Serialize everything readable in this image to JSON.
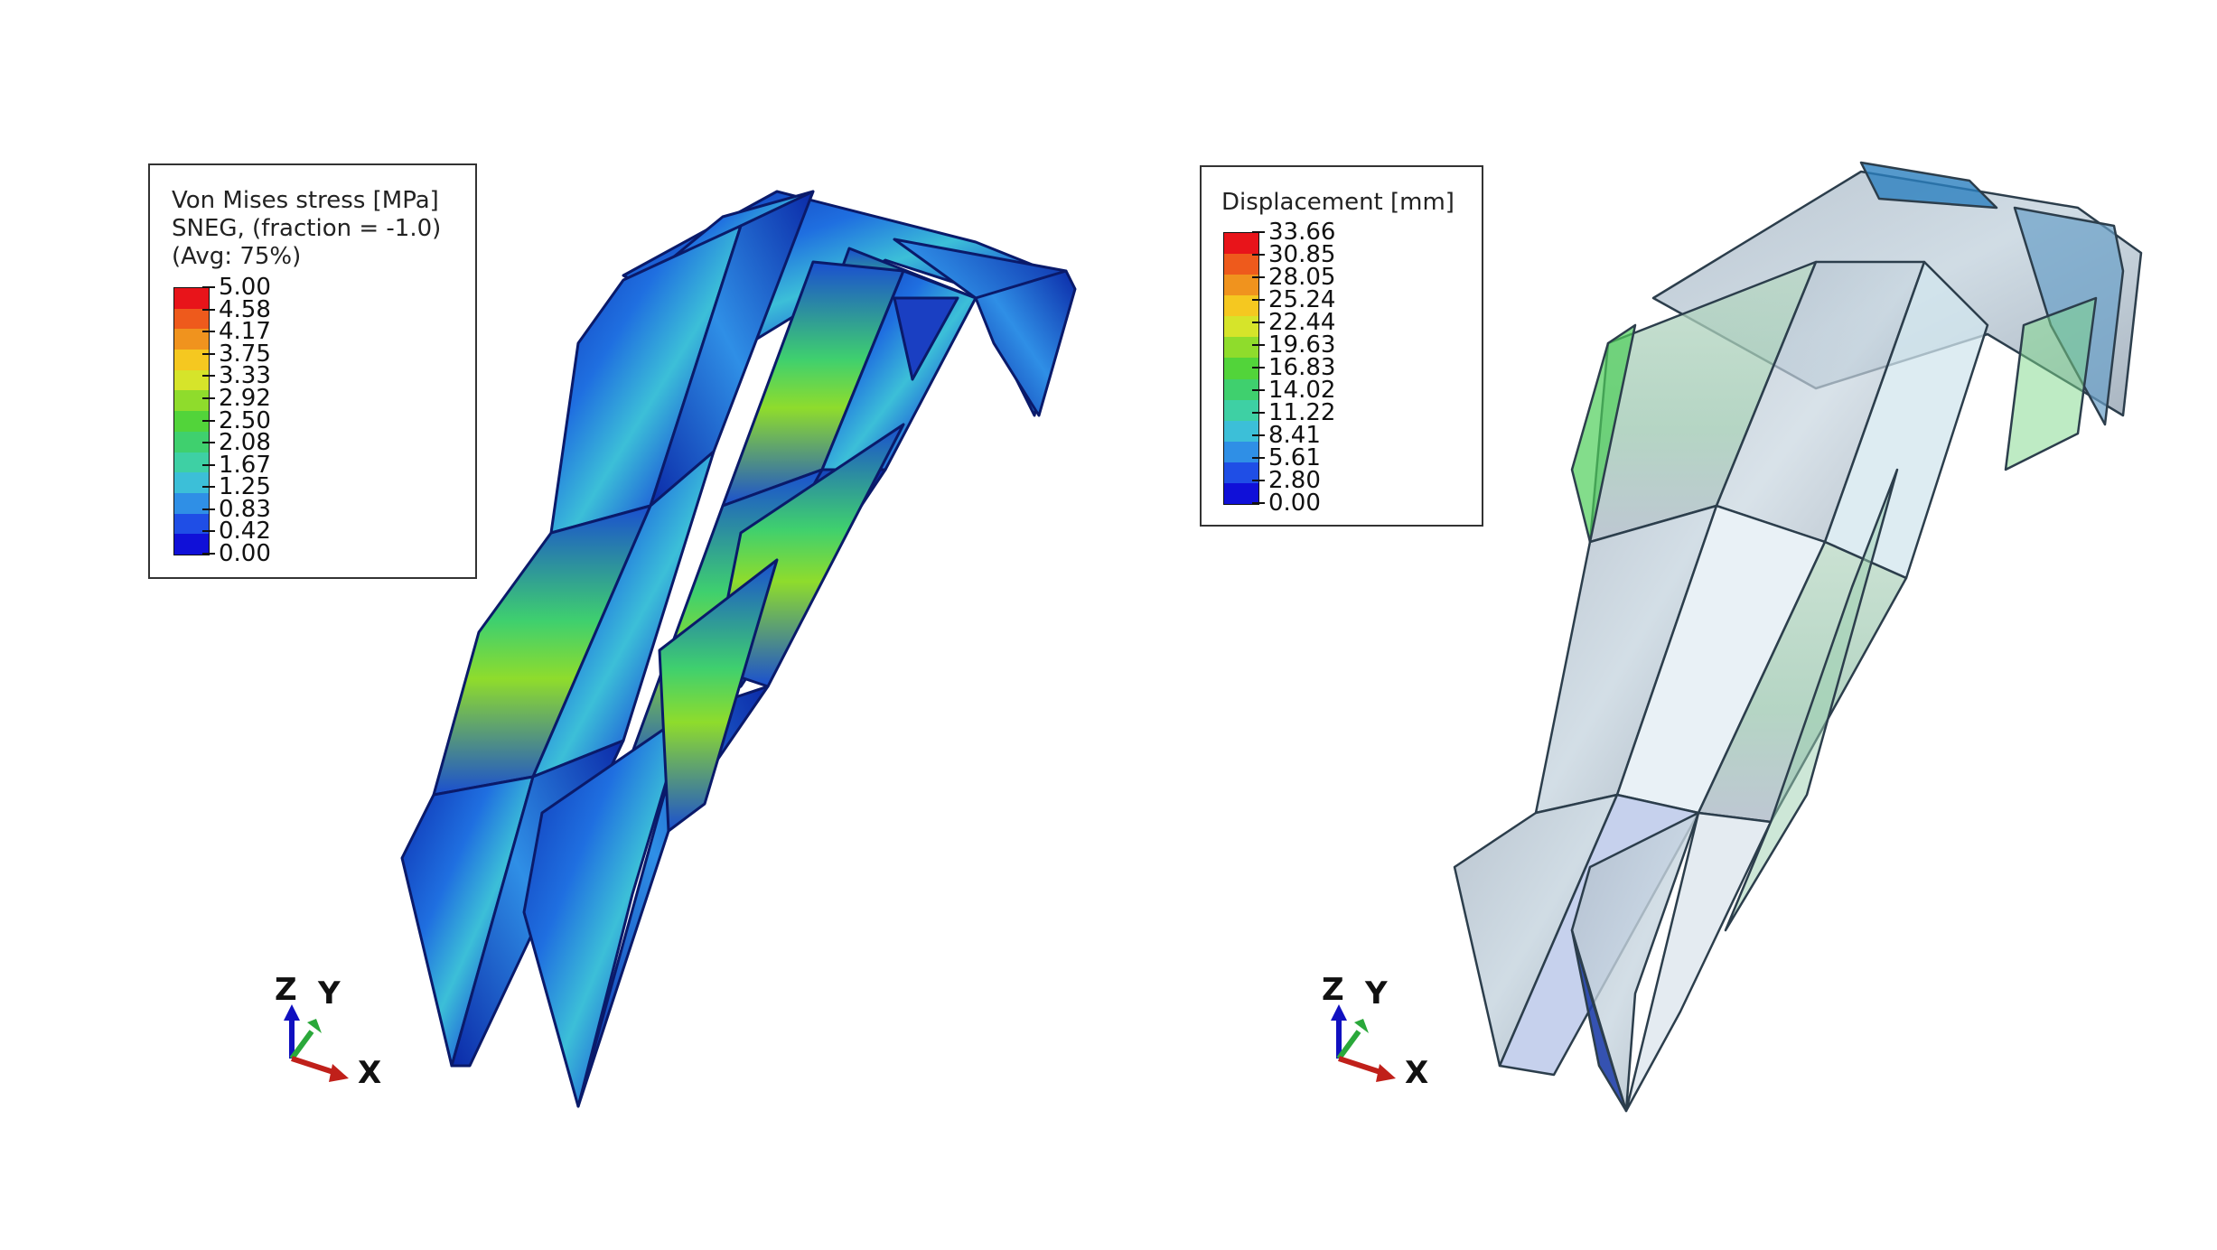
{
  "left_panel": {
    "legend": {
      "title_lines": [
        "Von Mises stress [MPa]",
        "SNEG, (fraction = -1.0)",
        "(Avg: 75%)"
      ],
      "values": [
        "5.00",
        "4.58",
        "4.17",
        "3.75",
        "3.33",
        "2.92",
        "2.50",
        "2.08",
        "1.67",
        "1.25",
        "0.83",
        "0.42",
        "0.00"
      ],
      "colors": [
        "#e8141a",
        "#ee5a1c",
        "#f0931e",
        "#f5c820",
        "#d6e42a",
        "#8fdc2c",
        "#52d43a",
        "#3fd06e",
        "#3ed0a4",
        "#3cbfd8",
        "#2f8fe6",
        "#1f4ee6",
        "#1010d8"
      ]
    },
    "triad": {
      "z": "Z",
      "y": "Y",
      "x": "X"
    }
  },
  "right_panel": {
    "legend": {
      "title_lines": [
        "Displacement [mm]"
      ],
      "values": [
        "33.66",
        "30.85",
        "28.05",
        "25.24",
        "22.44",
        "19.63",
        "16.83",
        "14.02",
        "11.22",
        "8.41",
        "5.61",
        "2.80",
        "0.00"
      ],
      "colors": [
        "#e8141a",
        "#ee5a1c",
        "#f0931e",
        "#f5c820",
        "#d6e42a",
        "#8fdc2c",
        "#52d43a",
        "#3fd06e",
        "#3ed0a4",
        "#3cbfd8",
        "#2f8fe6",
        "#1f4ee6",
        "#1010d8"
      ]
    },
    "triad": {
      "z": "Z",
      "y": "Y",
      "x": "X"
    }
  }
}
